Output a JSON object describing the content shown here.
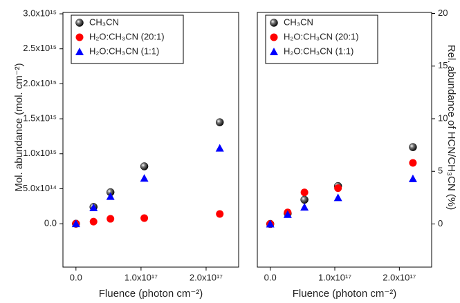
{
  "chart_data": [
    {
      "type": "scatter",
      "xlabel": "Fluence (photon cm⁻²)",
      "ylabel": "Mol. abundance (mol. cm⁻²)",
      "yaxis_side": "left",
      "legend": "upper left",
      "xlim": [
        -2e+16,
        2.5e+17
      ],
      "ylim": [
        -620000000000000.0,
        3020000000000000.0
      ],
      "xticks": [
        {
          "value": 0,
          "label": "0.0"
        },
        {
          "value": 1e+17,
          "label": "1.0x10¹⁷"
        },
        {
          "value": 2e+17,
          "label": "2.0x10¹⁷"
        }
      ],
      "yticks": [
        {
          "value": 0,
          "label": "0.0"
        },
        {
          "value": 500000000000000.0,
          "label": "5.0x10¹⁴"
        },
        {
          "value": 1000000000000000.0,
          "label": "1.0x10¹⁵"
        },
        {
          "value": 1500000000000000.0,
          "label": "1.5x10¹⁵"
        },
        {
          "value": 2000000000000000.0,
          "label": "2.0x10¹⁵"
        },
        {
          "value": 2500000000000000.0,
          "label": "2.5x10¹⁵"
        },
        {
          "value": 3000000000000000.0,
          "label": "3.0x10¹⁵"
        }
      ],
      "x": [
        0,
        2.7e+16,
        5.3e+16,
        1.05e+17,
        2.21e+17
      ],
      "series": [
        {
          "name": "CH₃CN",
          "color": "#000000",
          "marker": "sphere",
          "values": [
            0,
            240000000000000.0,
            450000000000000.0,
            820000000000000.0,
            1450000000000000.0
          ]
        },
        {
          "name": "H₂O:CH₃CN (20:1)",
          "color": "#ff0000",
          "marker": "circle",
          "values": [
            0,
            30000000000000.0,
            70000000000000.0,
            80000000000000.0,
            140000000000000.0
          ]
        },
        {
          "name": "H₂O:CH₃CN (1:1)",
          "color": "#0000ff",
          "marker": "triangle",
          "values": [
            0,
            230000000000000.0,
            390000000000000.0,
            650000000000000.0,
            1080000000000000.0
          ]
        }
      ]
    },
    {
      "type": "scatter",
      "xlabel": "Fluence (photon cm⁻²)",
      "ylabel": "Rel. abundance of HCN/CH₃CN (%)",
      "yaxis_side": "right",
      "legend": "upper left",
      "xlim": [
        -2e+16,
        2.5e+17
      ],
      "ylim": [
        -4.1,
        20.1
      ],
      "xticks": [
        {
          "value": 0,
          "label": "0.0"
        },
        {
          "value": 1e+17,
          "label": "1.0x10¹⁷"
        },
        {
          "value": 2e+17,
          "label": "2.0x10¹⁷"
        }
      ],
      "yticks": [
        0,
        5,
        10,
        15,
        20
      ],
      "x": [
        0,
        2.7e+16,
        5.3e+16,
        1.05e+17,
        2.21e+17
      ],
      "series": [
        {
          "name": "CH₃CN",
          "color": "#000000",
          "marker": "sphere",
          "values": [
            0,
            1.0,
            2.3,
            3.6,
            7.3
          ]
        },
        {
          "name": "H₂O:CH₃CN (20:1)",
          "color": "#ff0000",
          "marker": "circle",
          "values": [
            0,
            1.1,
            3.0,
            3.4,
            5.8
          ]
        },
        {
          "name": "H₂O:CH₃CN (1:1)",
          "color": "#0000ff",
          "marker": "triangle",
          "values": [
            0,
            0.9,
            1.6,
            2.5,
            4.3
          ]
        }
      ]
    }
  ]
}
